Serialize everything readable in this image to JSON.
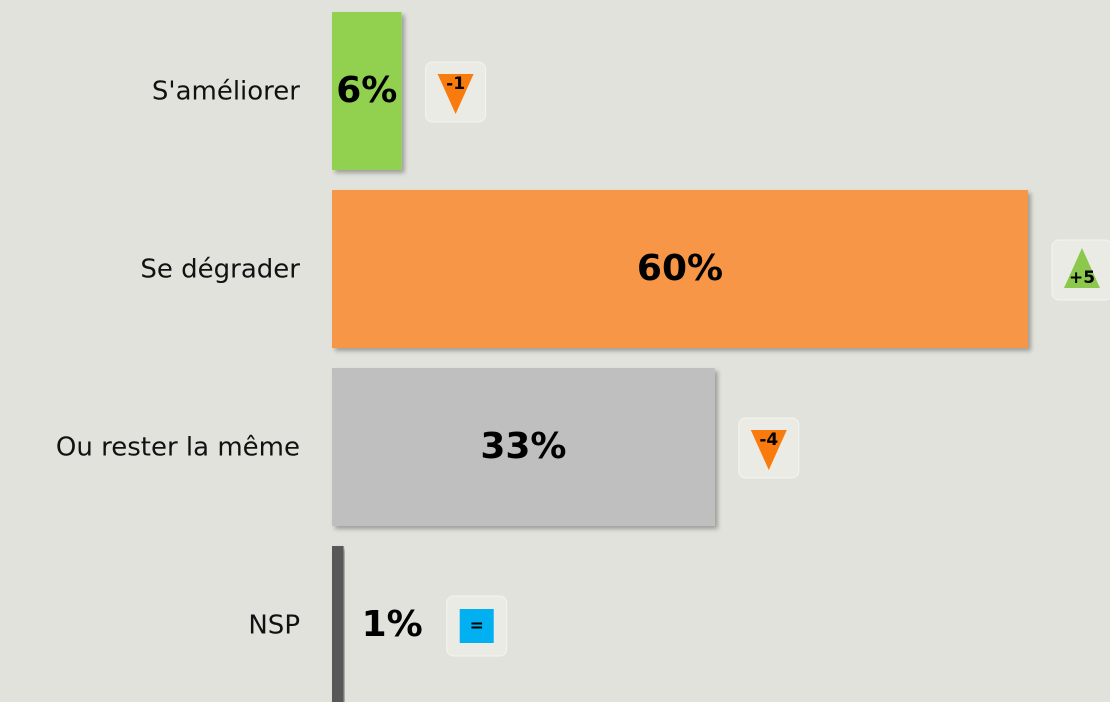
{
  "chart_data": {
    "type": "bar",
    "orientation": "horizontal",
    "categories": [
      "S'améliorer",
      "Se dégrader",
      "Ou rester la même",
      "NSP"
    ],
    "values": [
      6,
      60,
      33,
      1
    ],
    "value_labels": [
      "6%",
      "60%",
      "33%",
      "1%"
    ],
    "colors": [
      "#92d050",
      "#f79646",
      "#bfbfbf",
      "#595959"
    ],
    "changes": [
      -1,
      5,
      -4,
      0
    ],
    "change_labels": [
      "-1",
      "+5",
      "-4",
      "="
    ]
  }
}
